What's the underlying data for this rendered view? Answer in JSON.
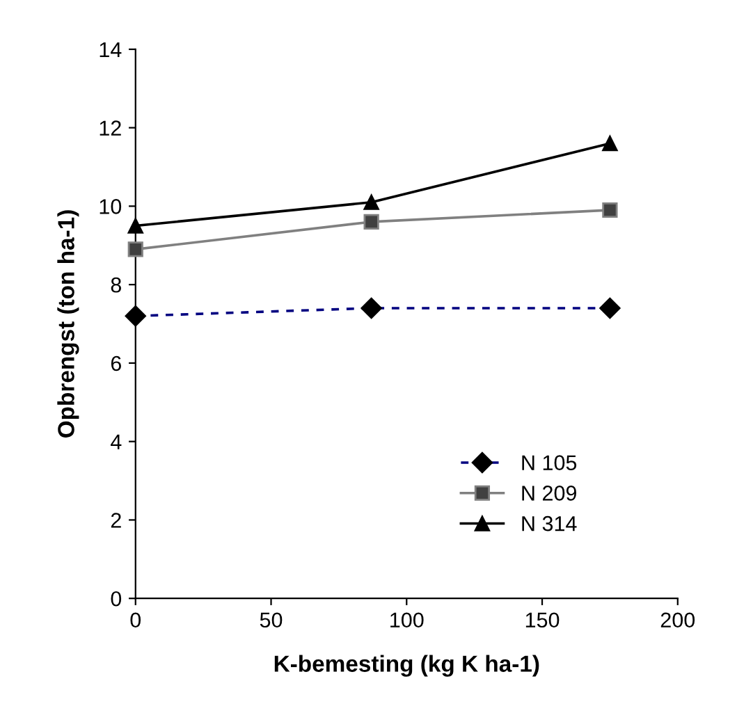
{
  "chart_data": {
    "type": "line",
    "xlabel": "K-bemesting (kg K ha-1)",
    "ylabel": "Opbrengst (ton ha-1)",
    "x": [
      0,
      87,
      175
    ],
    "series": [
      {
        "name": "N 105",
        "color": "#000080",
        "marker": "diamond",
        "line_style": "dashed",
        "values": [
          7.2,
          7.4,
          7.4
        ]
      },
      {
        "name": "N 209",
        "color": "#808080",
        "marker": "square",
        "line_style": "solid",
        "values": [
          8.9,
          9.6,
          9.9
        ]
      },
      {
        "name": "N 314",
        "color": "#000000",
        "marker": "triangle",
        "line_style": "solid",
        "values": [
          9.5,
          10.1,
          11.6
        ]
      }
    ],
    "xlim": [
      0,
      200
    ],
    "xticks": [
      0,
      50,
      100,
      150,
      200
    ],
    "ylim": [
      0,
      14
    ],
    "yticks": [
      0,
      2,
      4,
      6,
      8,
      10,
      12,
      14
    ],
    "grid": false,
    "legend": "bottom right"
  }
}
